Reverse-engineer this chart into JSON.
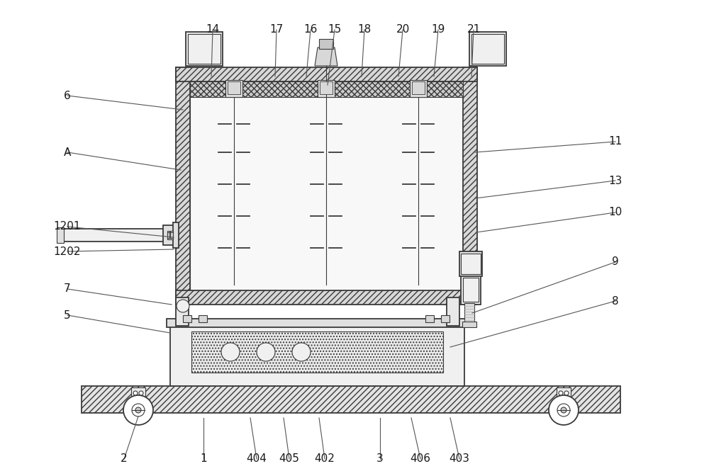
{
  "bg_color": "#ffffff",
  "lc": "#3a3a3a",
  "lc_light": "#777777",
  "fc_hatch": "#d8d8d8",
  "fc_light": "#f2f2f2",
  "fc_white": "#fafafa",
  "fc_stipple": "#e8e8e8",
  "label_fs": 11,
  "label_color": "#1a1a1a",
  "leader_color": "#555555",
  "bottom_labels": [
    [
      "2",
      175,
      648,
      195,
      588
    ],
    [
      "1",
      287,
      648,
      287,
      590
    ],
    [
      "404",
      362,
      648,
      353,
      590
    ],
    [
      "405",
      408,
      648,
      400,
      590
    ],
    [
      "402",
      458,
      648,
      450,
      590
    ],
    [
      "3",
      536,
      648,
      536,
      590
    ],
    [
      "406",
      593,
      648,
      580,
      590
    ],
    [
      "403",
      648,
      648,
      635,
      590
    ]
  ],
  "top_labels": [
    [
      "14",
      300,
      42,
      298,
      108
    ],
    [
      "17",
      390,
      42,
      388,
      108
    ],
    [
      "16",
      438,
      42,
      432,
      108
    ],
    [
      "15",
      472,
      42,
      462,
      120
    ],
    [
      "18",
      514,
      42,
      510,
      108
    ],
    [
      "20",
      568,
      42,
      562,
      108
    ],
    [
      "19",
      618,
      42,
      612,
      108
    ],
    [
      "21",
      668,
      42,
      665,
      108
    ]
  ],
  "left_labels": [
    [
      "6",
      95,
      135,
      258,
      155
    ],
    [
      "A",
      95,
      215,
      255,
      240
    ],
    [
      "1201",
      95,
      320,
      245,
      335
    ],
    [
      "1202",
      95,
      355,
      245,
      352
    ],
    [
      "7",
      95,
      408,
      242,
      430
    ],
    [
      "5",
      95,
      445,
      240,
      470
    ]
  ],
  "right_labels": [
    [
      "11",
      868,
      200,
      670,
      215
    ],
    [
      "13",
      868,
      255,
      670,
      280
    ],
    [
      "10",
      868,
      300,
      672,
      328
    ],
    [
      "9",
      868,
      370,
      666,
      442
    ],
    [
      "8",
      868,
      425,
      635,
      490
    ]
  ]
}
